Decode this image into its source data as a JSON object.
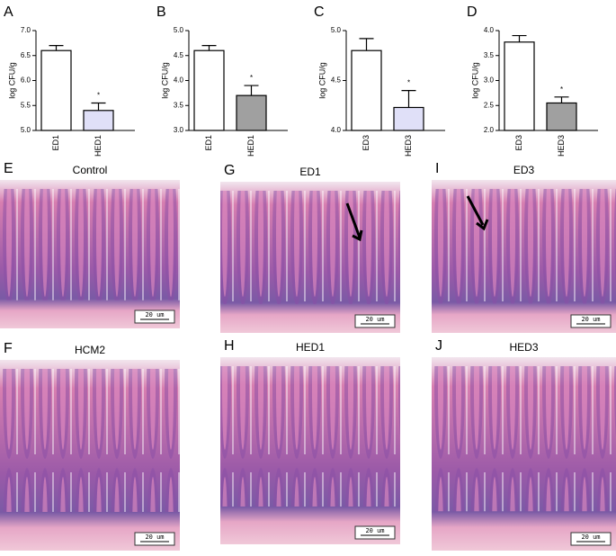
{
  "chart_data": [
    {
      "type": "bar",
      "panel": "A",
      "ylabel": "log CFU/g",
      "categories": [
        "ED1",
        "HED1"
      ],
      "values": [
        6.6,
        5.4
      ],
      "errors": [
        0.1,
        0.15
      ],
      "colors": [
        "#ffffff",
        "#e0e0f8"
      ],
      "annotation": "*",
      "ylim": [
        5,
        7
      ],
      "yticks": [
        {
          "value": 5,
          "label": "5.0"
        },
        {
          "value": 5.5,
          "label": "5.5"
        },
        {
          "value": 6,
          "label": "6.0"
        },
        {
          "value": 6.5,
          "label": "6.5"
        },
        {
          "value": 7,
          "label": "7.0"
        }
      ]
    },
    {
      "type": "bar",
      "panel": "B",
      "ylabel": "log CFU/g",
      "categories": [
        "ED1",
        "HED1"
      ],
      "values": [
        4.6,
        3.7
      ],
      "errors": [
        0.1,
        0.2
      ],
      "colors": [
        "#ffffff",
        "#a0a0a0"
      ],
      "annotation": "*",
      "ylim": [
        3,
        5
      ],
      "yticks": [
        {
          "value": 3,
          "label": "3.0"
        },
        {
          "value": 3.5,
          "label": "3.5"
        },
        {
          "value": 4,
          "label": "4.0"
        },
        {
          "value": 4.5,
          "label": "4.5"
        },
        {
          "value": 5,
          "label": "5.0"
        }
      ]
    },
    {
      "type": "bar",
      "panel": "C",
      "ylabel": "log CFU/g",
      "categories": [
        "ED3",
        "HED3"
      ],
      "values": [
        4.8,
        4.23
      ],
      "errors": [
        0.12,
        0.17
      ],
      "colors": [
        "#ffffff",
        "#e0e0f8"
      ],
      "annotation": "*",
      "ylim": [
        4,
        5
      ],
      "yticks": [
        {
          "value": 4,
          "label": "4.0"
        },
        4.5,
        {
          "value": 5,
          "label": "5.0"
        }
      ]
    },
    {
      "type": "bar",
      "panel": "D",
      "ylabel": "log CFU/g",
      "categories": [
        "ED3",
        "HED3"
      ],
      "values": [
        3.77,
        2.55
      ],
      "errors": [
        0.13,
        0.12
      ],
      "colors": [
        "#ffffff",
        "#a0a0a0"
      ],
      "annotation": "*",
      "ylim": [
        2,
        4
      ],
      "yticks": [
        {
          "value": 2,
          "label": "2.0"
        },
        2.5,
        {
          "value": 3,
          "label": "3.0"
        },
        3.5,
        {
          "value": 4,
          "label": "4.0"
        }
      ]
    }
  ],
  "histology": [
    {
      "panel": "E",
      "title": "Control",
      "scale_bar": "20 um"
    },
    {
      "panel": "G",
      "title": "ED1",
      "scale_bar": "20 um"
    },
    {
      "panel": "I",
      "title": "ED3",
      "scale_bar": "20 um"
    },
    {
      "panel": "F",
      "title": "HCM2",
      "scale_bar": "20 um"
    },
    {
      "panel": "H",
      "title": "HED1",
      "scale_bar": "20 um"
    },
    {
      "panel": "J",
      "title": "HED3",
      "scale_bar": "20 um"
    }
  ]
}
